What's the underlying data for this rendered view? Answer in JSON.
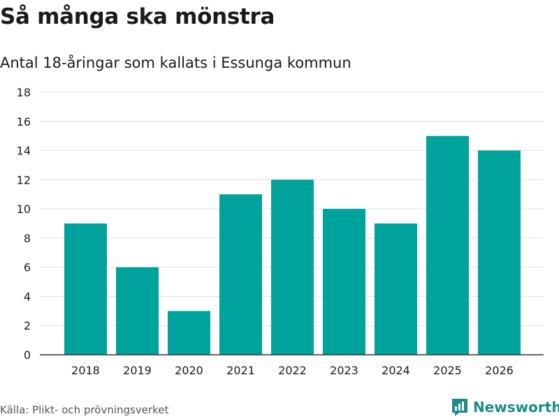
{
  "header": {
    "title": "Så många ska mönstra",
    "subtitle": "Antal 18-åringar som kallats i Essunga kommun"
  },
  "chart_data": {
    "type": "bar",
    "title": "Så många ska mönstra",
    "subtitle": "Antal 18-åringar som kallats i Essunga kommun",
    "xlabel": "",
    "ylabel": "",
    "categories": [
      "2018",
      "2019",
      "2020",
      "2021",
      "2022",
      "2023",
      "2024",
      "2025",
      "2026"
    ],
    "values": [
      9,
      6,
      3,
      11,
      12,
      10,
      9,
      15,
      14
    ],
    "ylim": [
      0,
      18
    ],
    "yticks": [
      0,
      2,
      4,
      6,
      8,
      10,
      12,
      14,
      16,
      18
    ],
    "grid": true,
    "legend": "none"
  },
  "footer": {
    "source": "Källa: Plikt- och prövningsverket",
    "brand": "Newsworthy"
  },
  "colors": {
    "bar": "#00a39b",
    "grid": "#e0e0e0",
    "axis": "#333333",
    "brand": "#1b8b8b",
    "text": "#1a1a1a"
  }
}
